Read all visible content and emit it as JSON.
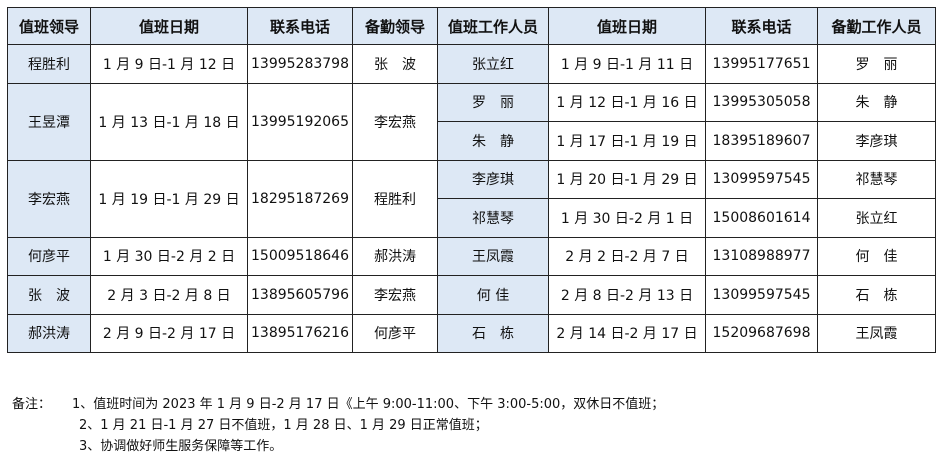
{
  "headers": [
    "值班领导",
    "值班日期",
    "联系电话",
    "备勤领导",
    "值班工作人员",
    "值班日期",
    "联系电话",
    "备勤工作人员"
  ],
  "leaders": [
    {
      "name": "程胜利",
      "date": "1 月 9 日-1 月 12 日",
      "phone": "13995283798",
      "backup": "张　波",
      "span": 1
    },
    {
      "name": "王昱潭",
      "date": "1 月 13 日-1 月 18 日",
      "phone": "13995192065",
      "backup": "李宏燕",
      "span": 2
    },
    {
      "name": "李宏燕",
      "date": "1 月 19 日-1 月 29 日",
      "phone": "18295187269",
      "backup": "程胜利",
      "span": 2
    },
    {
      "name": "何彦平",
      "date": "1 月 30 日-2 月 2 日",
      "phone": "15009518646",
      "backup": "郝洪涛",
      "span": 1
    },
    {
      "name": "张　波",
      "date": "2 月 3 日-2 月 8 日",
      "phone": "13895605796",
      "backup": "李宏燕",
      "span": 1
    },
    {
      "name": "郝洪涛",
      "date": "2 月 9 日-2 月 17 日",
      "phone": "13895176216",
      "backup": "何彦平",
      "span": 1
    }
  ],
  "staff": [
    {
      "name": "张立红",
      "date": "1 月 9 日-1 月 11 日",
      "phone": "13995177651",
      "backup": "罗　丽"
    },
    {
      "name": "罗　丽",
      "date": "1 月 12 日-1 月 16 日",
      "phone": "13995305058",
      "backup": "朱　静"
    },
    {
      "name": "朱　静",
      "date": "1 月 17 日-1 月 19 日",
      "phone": "18395189607",
      "backup": "李彦琪"
    },
    {
      "name": "李彦琪",
      "date": "1 月 20 日-1 月 29 日",
      "phone": "13099597545",
      "backup": "祁慧琴"
    },
    {
      "name": "祁慧琴",
      "date": "1 月 30 日-2 月 1 日",
      "phone": "15008601614",
      "backup": "张立红"
    },
    {
      "name": "王凤霞",
      "date": "2 月 2 日-2 月 7 日",
      "phone": "13108988977",
      "backup": "何　佳"
    },
    {
      "name": "何 佳",
      "date": "2 月 8 日-2 月 13 日",
      "phone": "13099597545",
      "backup": "石　栋"
    },
    {
      "name": "石　栋",
      "date": "2 月 14 日-2 月 17 日",
      "phone": "15209687698",
      "backup": "王凤霞"
    }
  ],
  "notes": {
    "label": "备注：",
    "lines": [
      "1、值班时间为 2023 年 1 月 9 日-2 月 17 日《上午 9:00-11:00、下午 3:00-5:00，双休日不值班；",
      "2、1 月 21 日-1 月 27 日不值班，1 月 28 日、1 月 29 日正常值班；",
      "3、协调做好师生服务保障等工作。"
    ]
  },
  "colors": {
    "header_bg": "#dde8f5",
    "border": "#222222"
  }
}
